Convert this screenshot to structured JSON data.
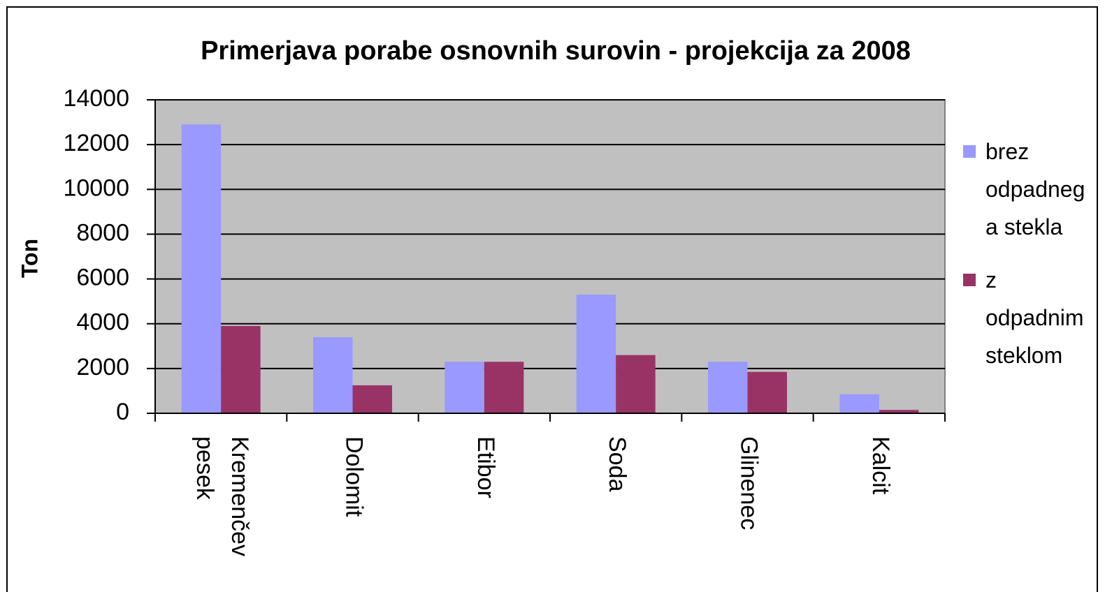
{
  "chart_data": {
    "type": "bar",
    "title": "Primerjava porabe osnovnih surovin - projekcija za 2008",
    "y_label": "Ton",
    "categories": [
      "Kremenčev pesek",
      "Dolomit",
      "Etibor",
      "Soda",
      "Glinenec",
      "Kalcit"
    ],
    "series": [
      {
        "name": "brez odpadnega stekla",
        "color": "#9999ff",
        "values": [
          12900,
          3400,
          2300,
          5300,
          2300,
          850
        ]
      },
      {
        "name": "z odpadnim steklom",
        "color": "#993366",
        "values": [
          3900,
          1250,
          2300,
          2600,
          1850,
          150
        ]
      }
    ],
    "ylim": [
      0,
      14000
    ],
    "yticks": [
      0,
      2000,
      4000,
      6000,
      8000,
      10000,
      12000,
      14000
    ],
    "grid": true,
    "legend": "right"
  }
}
